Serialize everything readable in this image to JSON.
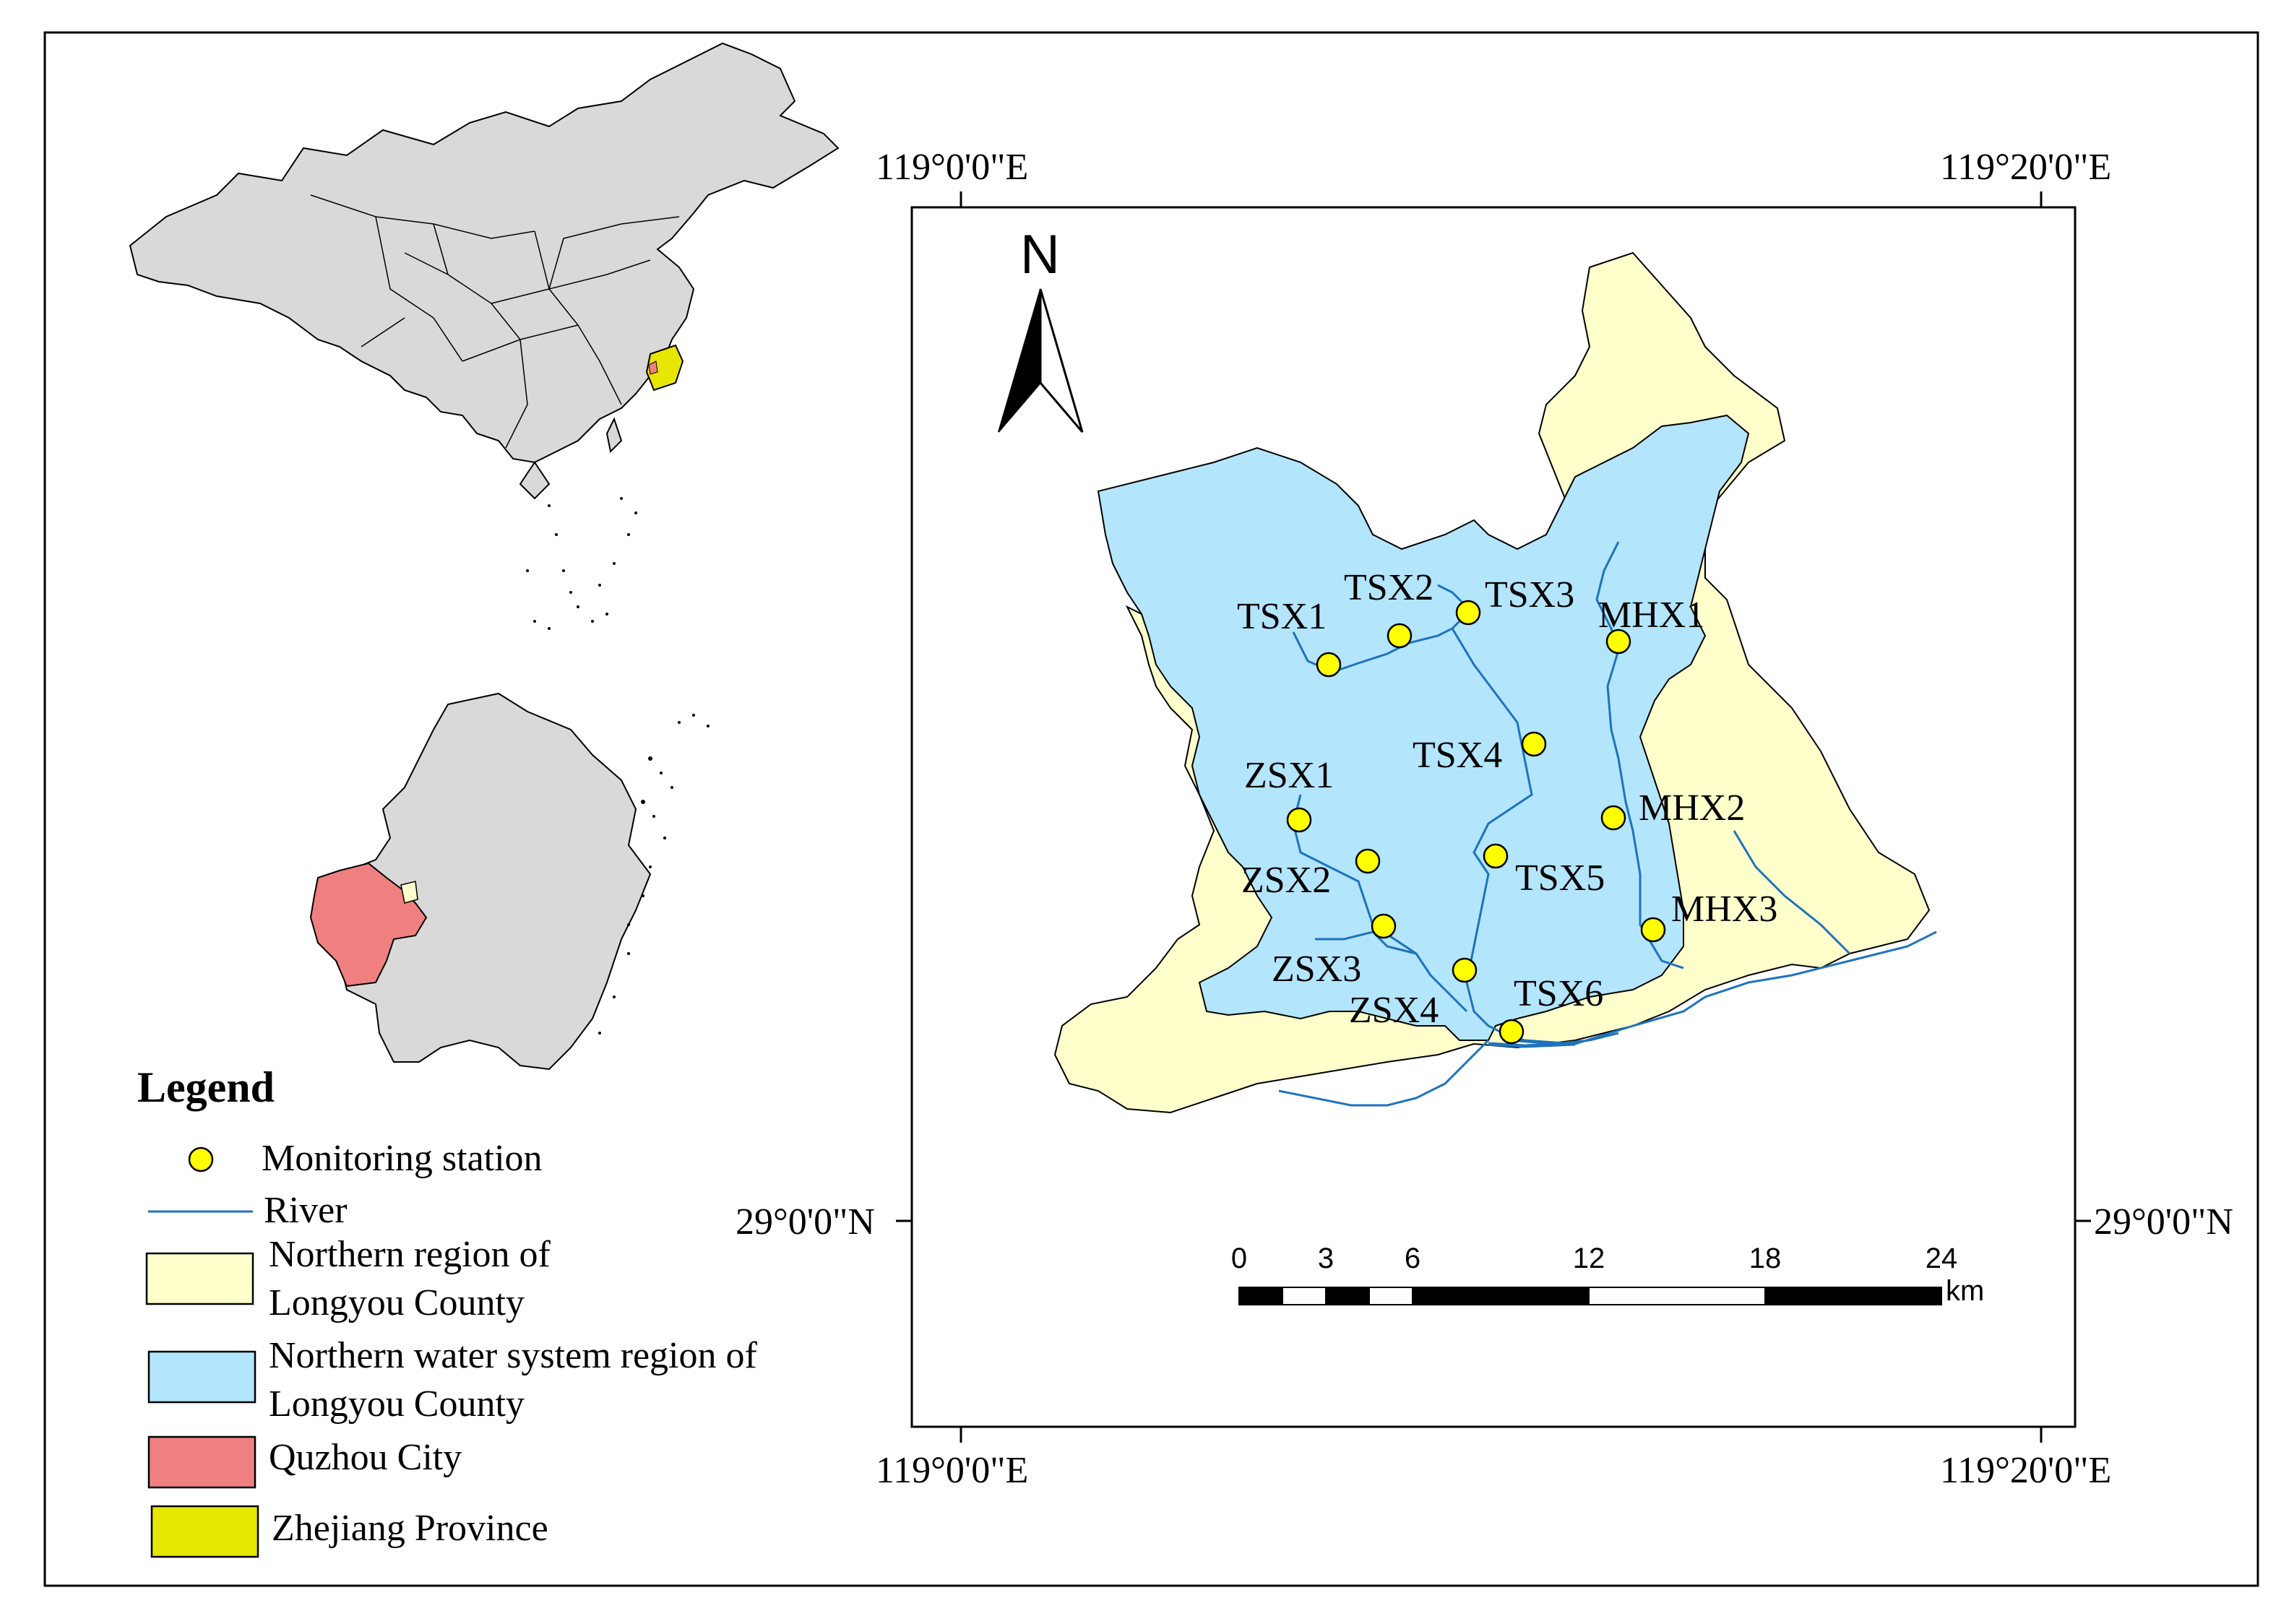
{
  "colors": {
    "frame": "#000000",
    "china_fill": "#d9d9d9",
    "zhejiang_yellow": "#e6e600",
    "quzhou_red": "#f08080",
    "northern_region": "#ffffcc",
    "water_system": "#b3e5fc",
    "river": "#1e73be",
    "station": "#ffff00"
  },
  "coords": {
    "top_left": "119°0'0\"E",
    "top_right": "119°20'0\"E",
    "bottom_left": "119°0'0\"E",
    "bottom_right": "119°20'0\"E",
    "left_lat": "29°0'0\"N",
    "right_lat": "29°0'0\"N"
  },
  "north_arrow": {
    "label": "N"
  },
  "stations": [
    {
      "label": "TSX1"
    },
    {
      "label": "TSX2"
    },
    {
      "label": "TSX3"
    },
    {
      "label": "MHX1"
    },
    {
      "label": "TSX4"
    },
    {
      "label": "ZSX1"
    },
    {
      "label": "MHX2"
    },
    {
      "label": "ZSX2"
    },
    {
      "label": "TSX5"
    },
    {
      "label": "MHX3"
    },
    {
      "label": "ZSX3"
    },
    {
      "label": "ZSX4"
    },
    {
      "label": "TSX6"
    }
  ],
  "scale_bar": {
    "ticks": [
      "0",
      "3",
      "6",
      "12",
      "18",
      "24"
    ],
    "unit": "km"
  },
  "legend": {
    "title": "Legend",
    "items": [
      {
        "label_1": "Monitoring station"
      },
      {
        "label_1": "River"
      },
      {
        "label_1": "Northern region of",
        "label_2": "Longyou County"
      },
      {
        "label_1": "Northern water system region of",
        "label_2": "Longyou County"
      },
      {
        "label_1": "Quzhou City"
      },
      {
        "label_1": "Zhejiang Province"
      }
    ]
  }
}
